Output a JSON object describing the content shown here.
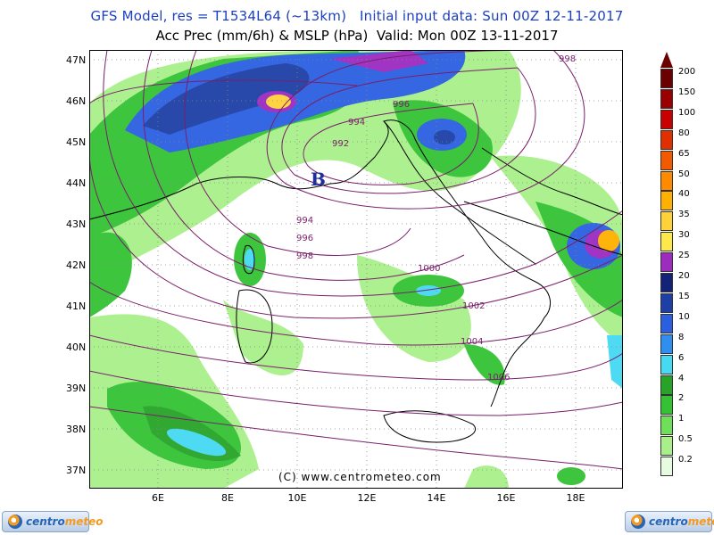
{
  "title_line1": "GFS Model, res = T1534L64 (~13km)   Initial input data: Sun 00Z 12-11-2017",
  "title_line2": "Acc Prec (mm/6h) & MSLP (hPa)  Valid: Mon 00Z 13-11-2017",
  "lat_labels": [
    "47N",
    "46N",
    "45N",
    "44N",
    "43N",
    "42N",
    "41N",
    "40N",
    "39N",
    "38N",
    "37N"
  ],
  "lon_labels": [
    "6E",
    "8E",
    "10E",
    "12E",
    "14E",
    "16E",
    "18E"
  ],
  "isobar_labels": [
    "998",
    "996",
    "994",
    "992",
    "994",
    "996",
    "998",
    "1000",
    "1002",
    "1004",
    "1006"
  ],
  "low_marker": "B",
  "legend_values": [
    "200",
    "150",
    "100",
    "80",
    "65",
    "50",
    "40",
    "35",
    "30",
    "25",
    "20",
    "15",
    "10",
    "8",
    "6",
    "4",
    "2",
    "1",
    "0.5",
    "0.2"
  ],
  "legend_colors": [
    "#6b0000",
    "#9b0000",
    "#c80000",
    "#e12f00",
    "#f25a00",
    "#ff8a00",
    "#ffb000",
    "#ffd23a",
    "#ffe94a",
    "#9d2bc0",
    "#13237a",
    "#1d3fa6",
    "#2a5fe0",
    "#2f8ff0",
    "#45d9f2",
    "#27a427",
    "#34c234",
    "#6fdf5a",
    "#a9f08a",
    "#e7fbe0"
  ],
  "copyright": "(C) www.centrometeo.com",
  "logo_left": {
    "a": "centro",
    "b": "meteo"
  },
  "logo_right": {
    "a": "centro",
    "b": "meteo"
  }
}
